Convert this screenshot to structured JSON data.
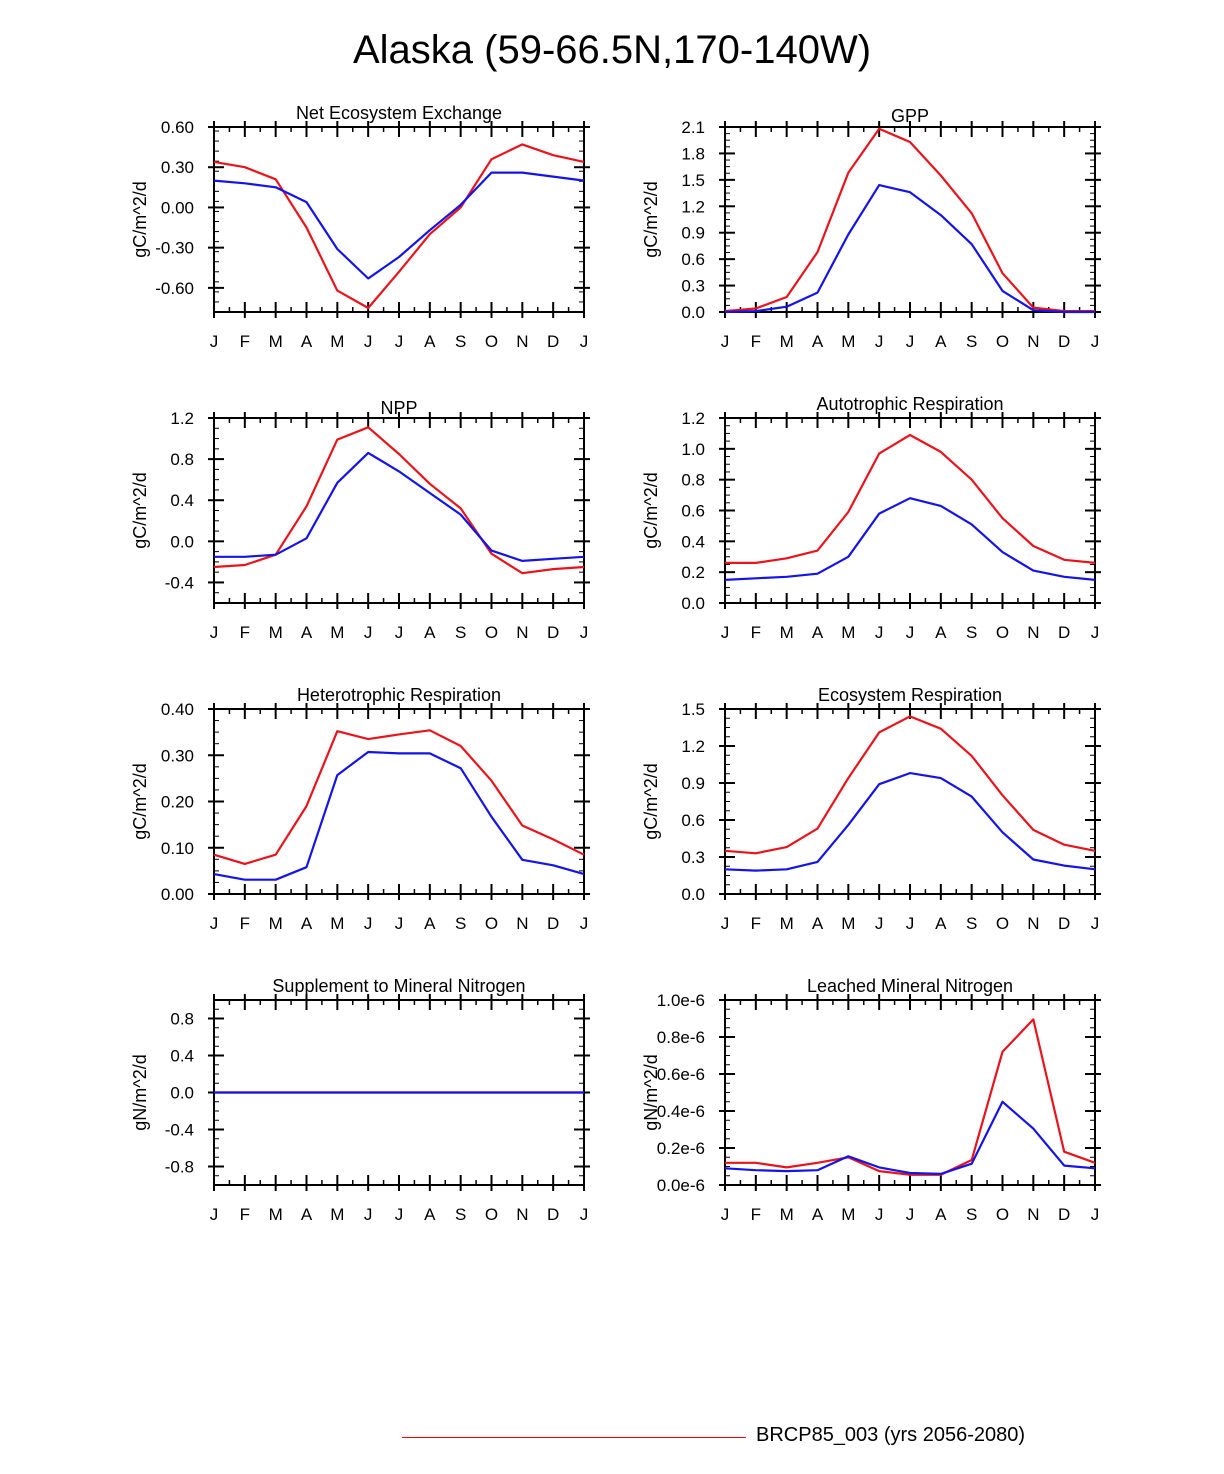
{
  "figure_title": "Alaska (59-66.5N,170-140W)",
  "legend": {
    "label": "BRCP85_003 (yrs 2056-2080)",
    "color": "#ff0000"
  },
  "series_colors": {
    "red": "#e8141c",
    "blue": "#1414e6"
  },
  "chart_data": [
    {
      "type": "line",
      "title": "Net Ecosystem Exchange",
      "ylabel": "gC/m^2/d",
      "categories": [
        "J",
        "F",
        "M",
        "A",
        "M",
        "J",
        "J",
        "A",
        "S",
        "O",
        "N",
        "D",
        "J"
      ],
      "ylim": [
        -0.78,
        0.6
      ],
      "yticks": [
        0.6,
        0.3,
        0.0,
        -0.3,
        -0.6
      ],
      "ytick_labels": [
        "0.60",
        "0.30",
        "0.00",
        "-0.30",
        "-0.60"
      ],
      "series": [
        {
          "name": "red",
          "values": [
            0.34,
            0.3,
            0.21,
            -0.15,
            -0.62,
            -0.75,
            -0.48,
            -0.2,
            0.0,
            0.36,
            0.47,
            0.39,
            0.34
          ]
        },
        {
          "name": "blue",
          "values": [
            0.2,
            0.18,
            0.15,
            0.04,
            -0.31,
            -0.53,
            -0.37,
            -0.17,
            0.02,
            0.26,
            0.26,
            0.23,
            0.2
          ]
        }
      ]
    },
    {
      "type": "line",
      "title": "GPP",
      "ylabel": "gC/m^2/d",
      "categories": [
        "J",
        "F",
        "M",
        "A",
        "M",
        "J",
        "J",
        "A",
        "S",
        "O",
        "N",
        "D",
        "J"
      ],
      "ylim": [
        0.0,
        2.1
      ],
      "yticks": [
        2.1,
        1.8,
        1.5,
        1.2,
        0.9,
        0.6,
        0.3,
        0.0
      ],
      "ytick_labels": [
        "2.1",
        "1.8",
        "1.5",
        "1.2",
        "0.9",
        "0.6",
        "0.3",
        "0.0"
      ],
      "series": [
        {
          "name": "red",
          "values": [
            0.01,
            0.04,
            0.17,
            0.68,
            1.58,
            2.08,
            1.93,
            1.55,
            1.12,
            0.44,
            0.05,
            0.01,
            0.01
          ]
        },
        {
          "name": "blue",
          "values": [
            0.0,
            0.01,
            0.06,
            0.22,
            0.88,
            1.44,
            1.36,
            1.1,
            0.77,
            0.24,
            0.02,
            0.0,
            0.0
          ]
        }
      ]
    },
    {
      "type": "line",
      "title": "NPP",
      "ylabel": "gC/m^2/d",
      "categories": [
        "J",
        "F",
        "M",
        "A",
        "M",
        "J",
        "J",
        "A",
        "S",
        "O",
        "N",
        "D",
        "J"
      ],
      "ylim": [
        -0.6,
        1.2
      ],
      "yticks": [
        1.2,
        0.8,
        0.4,
        0.0,
        -0.4
      ],
      "ytick_labels": [
        "1.2",
        "0.8",
        "0.4",
        "0.0",
        "-0.4"
      ],
      "series": [
        {
          "name": "red",
          "values": [
            -0.25,
            -0.23,
            -0.13,
            0.34,
            0.99,
            1.11,
            0.85,
            0.56,
            0.32,
            -0.12,
            -0.31,
            -0.27,
            -0.25
          ]
        },
        {
          "name": "blue",
          "values": [
            -0.15,
            -0.15,
            -0.13,
            0.03,
            0.57,
            0.86,
            0.68,
            0.47,
            0.26,
            -0.09,
            -0.19,
            -0.17,
            -0.15
          ]
        }
      ]
    },
    {
      "type": "line",
      "title": "Autotrophic Respiration",
      "ylabel": "gC/m^2/d",
      "categories": [
        "J",
        "F",
        "M",
        "A",
        "M",
        "J",
        "J",
        "A",
        "S",
        "O",
        "N",
        "D",
        "J"
      ],
      "ylim": [
        0.0,
        1.2
      ],
      "yticks": [
        1.2,
        1.0,
        0.8,
        0.6,
        0.4,
        0.2,
        0.0
      ],
      "ytick_labels": [
        "1.2",
        "1.0",
        "0.8",
        "0.6",
        "0.4",
        "0.2",
        "0.0"
      ],
      "series": [
        {
          "name": "red",
          "values": [
            0.26,
            0.26,
            0.29,
            0.34,
            0.59,
            0.97,
            1.09,
            0.98,
            0.8,
            0.55,
            0.37,
            0.28,
            0.26
          ]
        },
        {
          "name": "blue",
          "values": [
            0.15,
            0.16,
            0.17,
            0.19,
            0.3,
            0.58,
            0.68,
            0.63,
            0.51,
            0.33,
            0.21,
            0.17,
            0.15
          ]
        }
      ]
    },
    {
      "type": "line",
      "title": "Heterotrophic Respiration",
      "ylabel": "gC/m^2/d",
      "categories": [
        "J",
        "F",
        "M",
        "A",
        "M",
        "J",
        "J",
        "A",
        "S",
        "O",
        "N",
        "D",
        "J"
      ],
      "ylim": [
        0.0,
        0.4
      ],
      "yticks": [
        0.4,
        0.3,
        0.2,
        0.1,
        0.0
      ],
      "ytick_labels": [
        "0.40",
        "0.30",
        "0.20",
        "0.10",
        "0.00"
      ],
      "series": [
        {
          "name": "red",
          "values": [
            0.085,
            0.065,
            0.085,
            0.19,
            0.352,
            0.335,
            0.345,
            0.354,
            0.32,
            0.245,
            0.148,
            0.118,
            0.085
          ]
        },
        {
          "name": "blue",
          "values": [
            0.043,
            0.031,
            0.031,
            0.058,
            0.257,
            0.307,
            0.304,
            0.304,
            0.272,
            0.167,
            0.074,
            0.062,
            0.043
          ]
        }
      ]
    },
    {
      "type": "line",
      "title": "Ecosystem Respiration",
      "ylabel": "gC/m^2/d",
      "categories": [
        "J",
        "F",
        "M",
        "A",
        "M",
        "J",
        "J",
        "A",
        "S",
        "O",
        "N",
        "D",
        "J"
      ],
      "ylim": [
        0.0,
        1.5
      ],
      "yticks": [
        1.5,
        1.2,
        0.9,
        0.6,
        0.3,
        0.0
      ],
      "ytick_labels": [
        "1.5",
        "1.2",
        "0.9",
        "0.6",
        "0.3",
        "0.0"
      ],
      "series": [
        {
          "name": "red",
          "values": [
            0.35,
            0.33,
            0.38,
            0.53,
            0.94,
            1.31,
            1.44,
            1.34,
            1.12,
            0.8,
            0.52,
            0.4,
            0.35
          ]
        },
        {
          "name": "blue",
          "values": [
            0.2,
            0.19,
            0.2,
            0.26,
            0.56,
            0.89,
            0.98,
            0.94,
            0.79,
            0.5,
            0.28,
            0.23,
            0.2
          ]
        }
      ]
    },
    {
      "type": "line",
      "title": "Supplement to Mineral Nitrogen",
      "ylabel": "gN/m^2/d",
      "categories": [
        "J",
        "F",
        "M",
        "A",
        "M",
        "J",
        "J",
        "A",
        "S",
        "O",
        "N",
        "D",
        "J"
      ],
      "ylim": [
        -1.0,
        1.0
      ],
      "yticks": [
        0.8,
        0.4,
        0.0,
        -0.4,
        -0.8
      ],
      "ytick_labels": [
        "0.8",
        "0.4",
        "0.0",
        "-0.4",
        "-0.8"
      ],
      "series": [
        {
          "name": "red",
          "values": [
            0,
            0,
            0,
            0,
            0,
            0,
            0,
            0,
            0,
            0,
            0,
            0,
            0
          ]
        },
        {
          "name": "blue",
          "values": [
            0,
            0,
            0,
            0,
            0,
            0,
            0,
            0,
            0,
            0,
            0,
            0,
            0
          ]
        }
      ]
    },
    {
      "type": "line",
      "title": "Leached Mineral Nitrogen",
      "ylabel": "gN/m^2/d",
      "categories": [
        "J",
        "F",
        "M",
        "A",
        "M",
        "J",
        "J",
        "A",
        "S",
        "O",
        "N",
        "D",
        "J"
      ],
      "ylim": [
        0.0,
        1e-06
      ],
      "yticks": [
        1e-06,
        8e-07,
        6e-07,
        4e-07,
        2e-07,
        0.0
      ],
      "ytick_labels": [
        "1.0e-6",
        "0.8e-6",
        "0.6e-6",
        "0.4e-6",
        "0.2e-6",
        "0.0e-6"
      ],
      "series": [
        {
          "name": "red",
          "values": [
            1.2e-07,
            1.2e-07,
            9.5e-08,
            1.2e-07,
            1.5e-07,
            7.5e-08,
            5.5e-08,
            5.5e-08,
            1.35e-07,
            7.2e-07,
            8.95e-07,
            1.8e-07,
            1.2e-07
          ]
        },
        {
          "name": "blue",
          "values": [
            9e-08,
            8e-08,
            7.5e-08,
            8e-08,
            1.55e-07,
            9.5e-08,
            6.5e-08,
            6e-08,
            1.15e-07,
            4.5e-07,
            3.05e-07,
            1.05e-07,
            9e-08
          ]
        }
      ]
    }
  ]
}
